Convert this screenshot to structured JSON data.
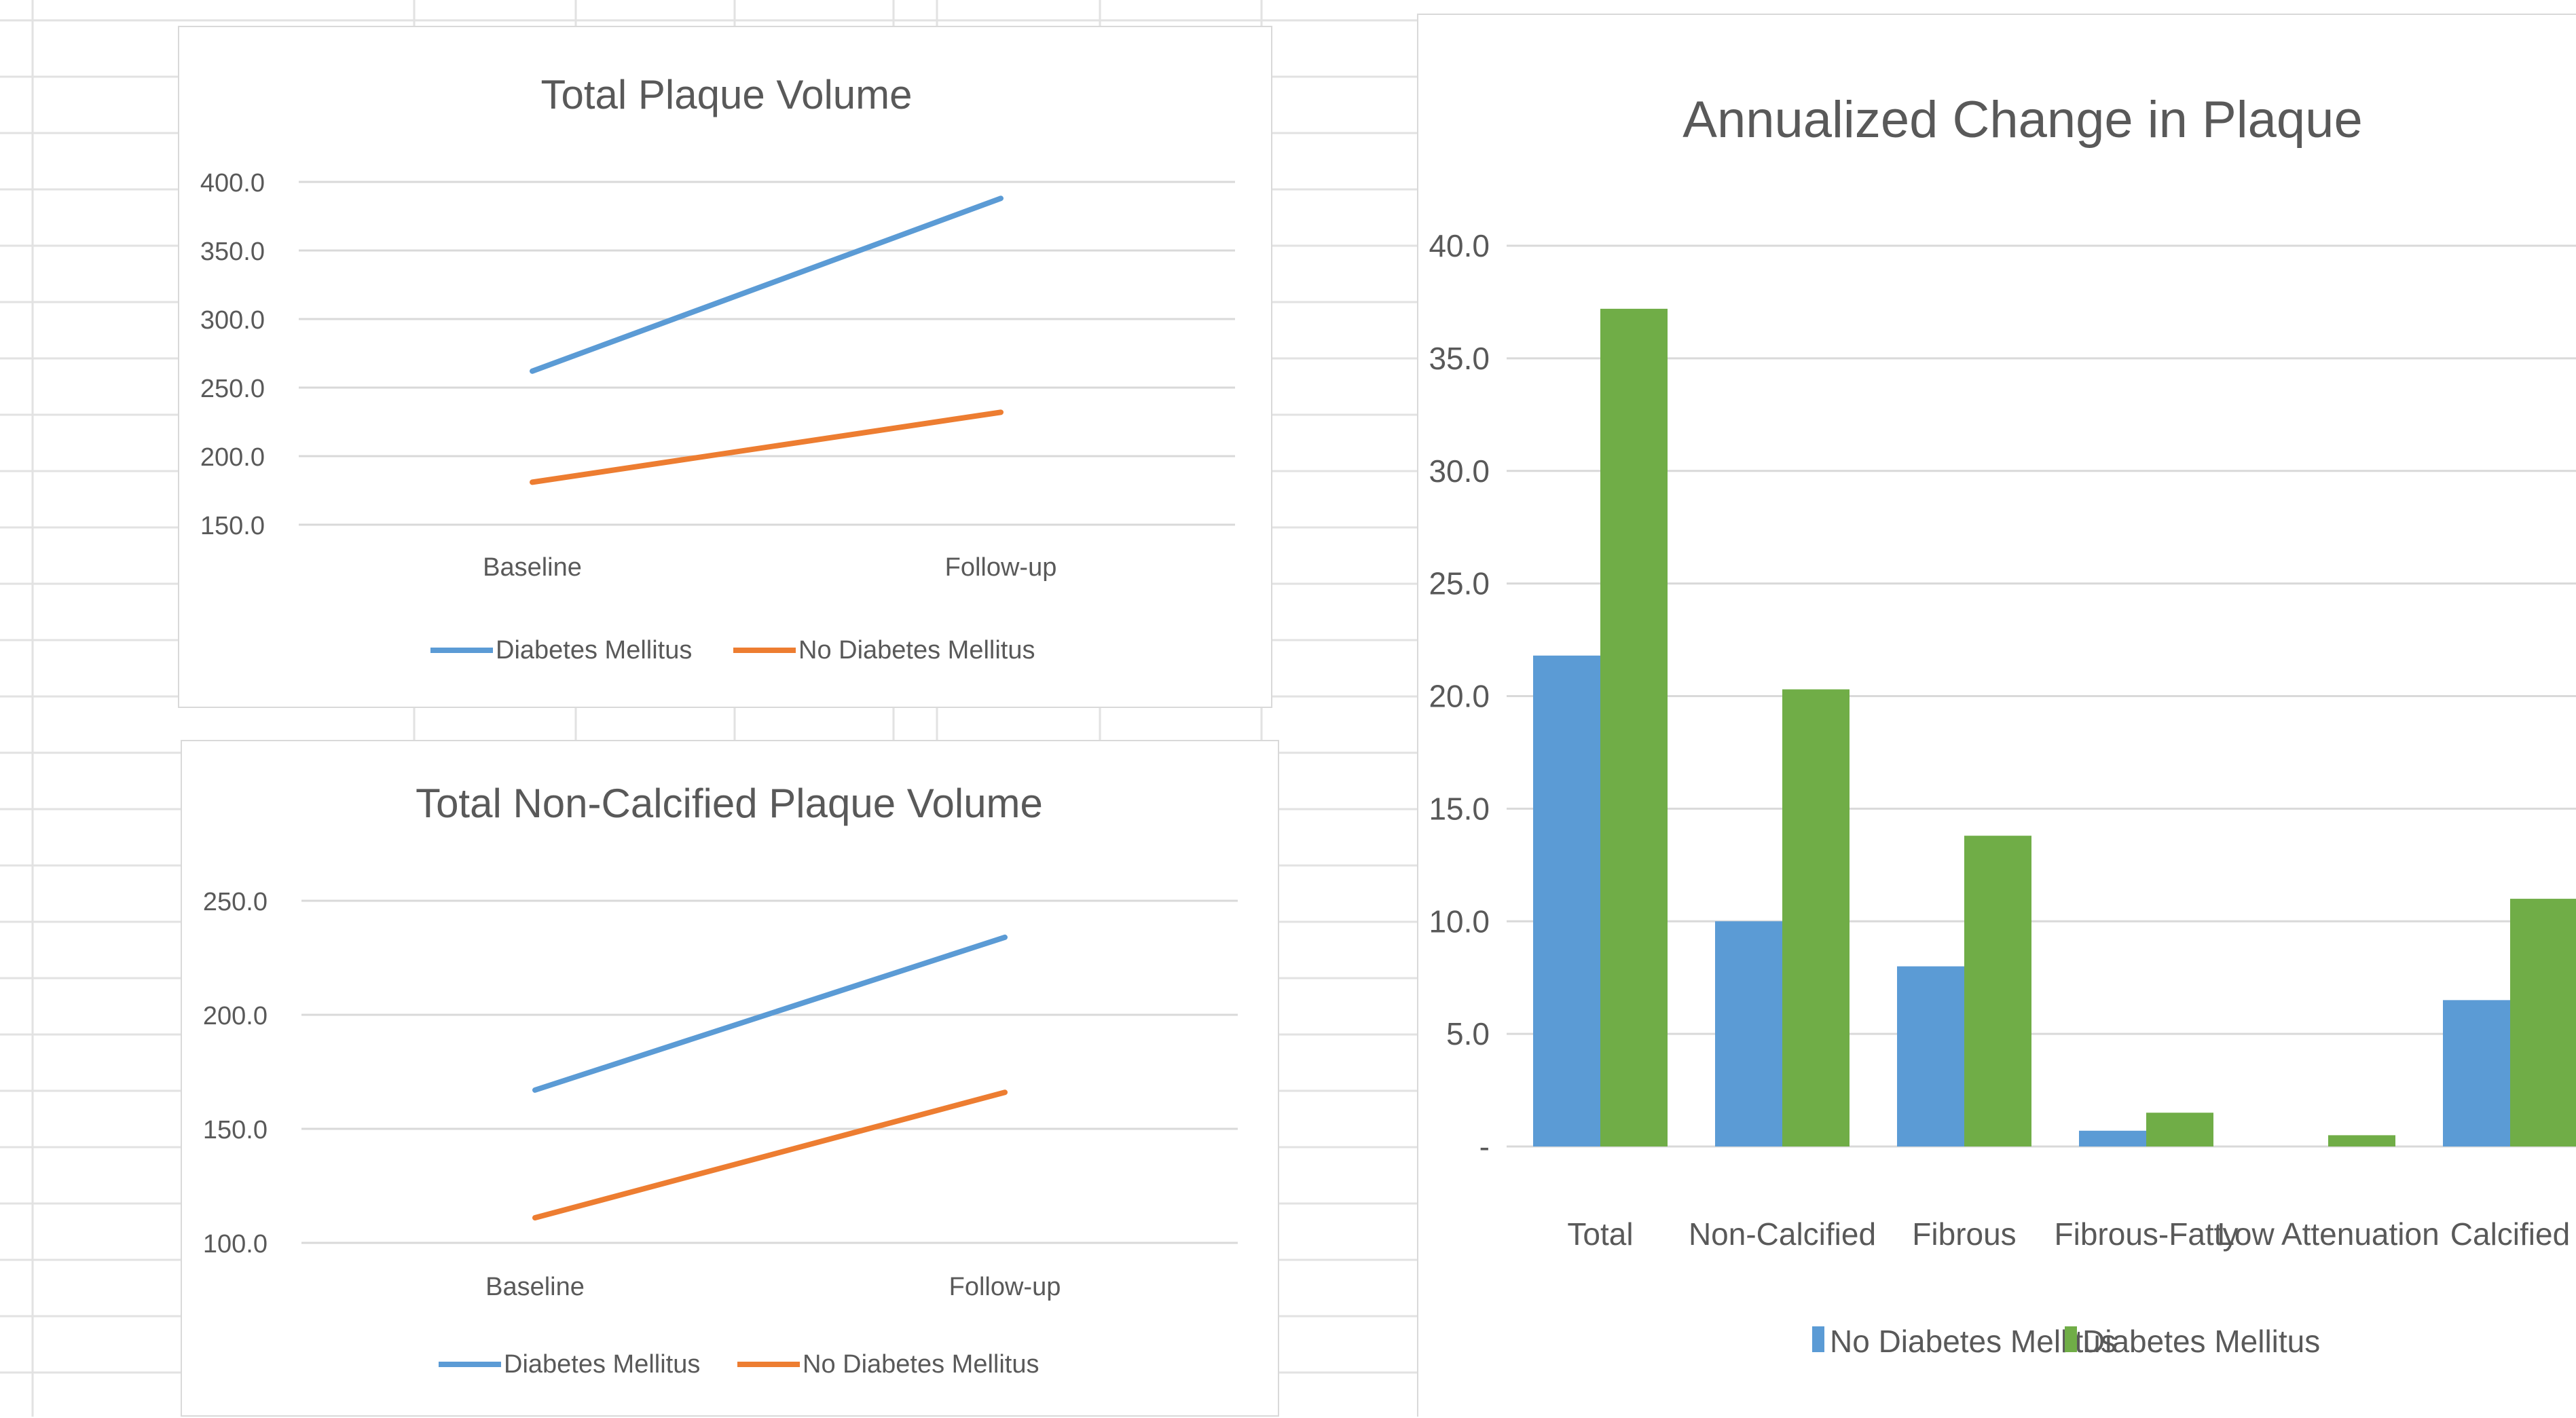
{
  "chart_data": [
    {
      "type": "line",
      "title": "Total Plaque Volume",
      "categories": [
        "Baseline",
        "Follow-up"
      ],
      "y_ticks": [
        "150.0",
        "200.0",
        "250.0",
        "300.0",
        "350.0",
        "400.0"
      ],
      "ylim": [
        150,
        400
      ],
      "series": [
        {
          "name": "Diabetes Mellitus",
          "color": "#5b9bd5",
          "values": [
            262,
            388
          ]
        },
        {
          "name": "No Diabetes Mellitus",
          "color": "#ed7d31",
          "values": [
            181,
            232
          ]
        }
      ],
      "grid": true,
      "legend": "bottom"
    },
    {
      "type": "line",
      "title": "Total Non-Calcified Plaque Volume",
      "categories": [
        "Baseline",
        "Follow-up"
      ],
      "y_ticks": [
        "100.0",
        "150.0",
        "200.0",
        "250.0"
      ],
      "ylim": [
        100,
        250
      ],
      "series": [
        {
          "name": "Diabetes Mellitus",
          "color": "#5b9bd5",
          "values": [
            167,
            234
          ]
        },
        {
          "name": "No Diabetes Mellitus",
          "color": "#ed7d31",
          "values": [
            111,
            166
          ]
        }
      ],
      "grid": true,
      "legend": "bottom"
    },
    {
      "type": "bar",
      "title": "Annualized Change in Plaque",
      "categories": [
        "Total",
        "Non-Calcified",
        "Fibrous",
        "Fibrous-Fatty",
        "Low Attenuation",
        "Calcified"
      ],
      "y_ticks": [
        "-",
        "5.0",
        "10.0",
        "15.0",
        "20.0",
        "25.0",
        "30.0",
        "35.0",
        "40.0"
      ],
      "ylim": [
        0,
        40
      ],
      "series": [
        {
          "name": "No Diabetes Mellitus",
          "color": "#5b9bd5",
          "values": [
            21.8,
            10.0,
            8.0,
            0.7,
            0.0,
            6.5
          ]
        },
        {
          "name": "Diabetes Mellitus",
          "color": "#70ad47",
          "values": [
            37.2,
            20.3,
            13.8,
            1.5,
            0.5,
            11.0
          ]
        }
      ],
      "grid": true,
      "legend": "bottom"
    }
  ]
}
